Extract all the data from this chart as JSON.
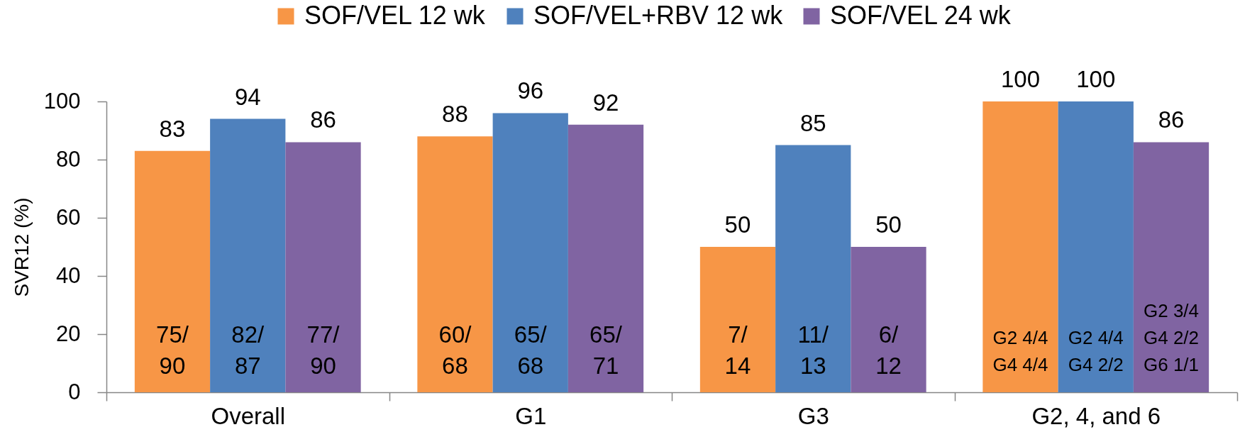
{
  "chart_data": {
    "type": "bar",
    "ylabel": "SVR12 (%)",
    "categories": [
      "Overall",
      "G1",
      "G3",
      "G2, 4, and 6"
    ],
    "series": [
      {
        "name": "SOF/VEL 12 wk",
        "color": "#f79646",
        "values": [
          83,
          88,
          50,
          100
        ]
      },
      {
        "name": "SOF/VEL+RBV 12 wk",
        "color": "#4f81bd",
        "values": [
          94,
          96,
          85,
          100
        ]
      },
      {
        "name": "SOF/VEL 24 wk",
        "color": "#8064a2",
        "values": [
          86,
          92,
          50,
          86
        ]
      }
    ],
    "ylim": [
      0,
      100
    ],
    "yticks": [
      0,
      20,
      40,
      60,
      80,
      100
    ],
    "grid": false,
    "legend": "top",
    "data_labels": true,
    "annotations": [
      "75/\n90",
      "82/\n87",
      "77/\n90",
      "60/\n68",
      "65/\n68",
      "65/\n71",
      "7/\n14",
      "11/\n13",
      "6/\n12",
      "G2 4/4\nG4 4/4",
      "G2 4/4\nG4 2/2",
      "G2 3/4\nG4 2/2\nG6 1/1"
    ]
  }
}
